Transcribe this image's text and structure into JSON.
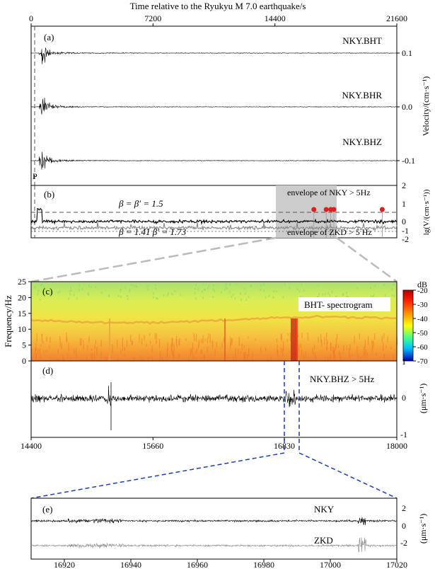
{
  "figure": {
    "top_axis_label": "Time relative to the Ryukyu M 7.0 earthquake/s",
    "top_ticks": [
      "0",
      "7200",
      "14400",
      "21600"
    ]
  },
  "panels": {
    "a": {
      "tag": "(a)",
      "traces": [
        "NKY.BHT",
        "NKY.BHR",
        "NKY.BHZ"
      ],
      "right_ticks": [
        "0.1",
        "0.0",
        "-0.1"
      ],
      "ylabel": "Velocity/(cm·s⁻¹)",
      "p_label": "P"
    },
    "b": {
      "tag": "(b)",
      "ylabel": "lg(V/(cm·s⁻¹))",
      "right_ticks": [
        "2",
        "1",
        "0",
        "-1",
        "-2"
      ],
      "beta_top": "β = β′ = 1.5",
      "beta_bottom": "β = 1.41   β′ = 1.73",
      "env_nky": "envelope of NKY > 5Hz",
      "env_zkd": "envelope of ZKD > 5 Hz"
    },
    "c": {
      "tag": "(c)",
      "title": "BHT- spectrogram",
      "ylabel": "Frequency/Hz",
      "y_ticks": [
        "0",
        "5",
        "10",
        "15",
        "20",
        "25"
      ],
      "colorbar_unit": "dB",
      "colorbar_ticks": [
        "-20",
        "-30",
        "-40",
        "-50",
        "-60",
        "-70"
      ]
    },
    "d": {
      "tag": "(d)",
      "title": "NKY.BHZ > 5Hz",
      "right_ticks": [
        "1",
        "0",
        "-1"
      ],
      "ylabel": "(μm·s⁻¹)",
      "x_ticks": [
        "14400",
        "15660",
        "16830",
        "18000"
      ]
    },
    "e": {
      "tag": "(e)",
      "trace_nky": "NKY",
      "trace_zkd": "ZKD",
      "right_ticks": [
        "2",
        "0",
        "-2"
      ],
      "ylabel": "(μm·s⁻¹)",
      "x_ticks": [
        "16920",
        "16940",
        "16960",
        "16980",
        "17000",
        "17020"
      ]
    }
  },
  "chart_data": {
    "type": "line",
    "colors": {
      "nky": "#000000",
      "zkd": "#888888",
      "markers": "#e02020",
      "highlight": "#cccccc",
      "zoom": "#1a3fb5"
    },
    "panel_b_markers_s": [
      16700,
      17430,
      17700,
      17880,
      20740
    ],
    "panel_b_highlight_s": [
      14400,
      18000
    ],
    "panel_d_zoom_s": [
      16830,
      16900
    ],
    "panel_a_ylim": [
      -0.15,
      0.15
    ],
    "panel_b_ylim": [
      -2,
      2
    ],
    "panel_c_ylim": [
      0,
      25
    ],
    "panel_d_ylim": [
      -1,
      1
    ],
    "panel_e_ylim": [
      -3,
      3
    ]
  }
}
